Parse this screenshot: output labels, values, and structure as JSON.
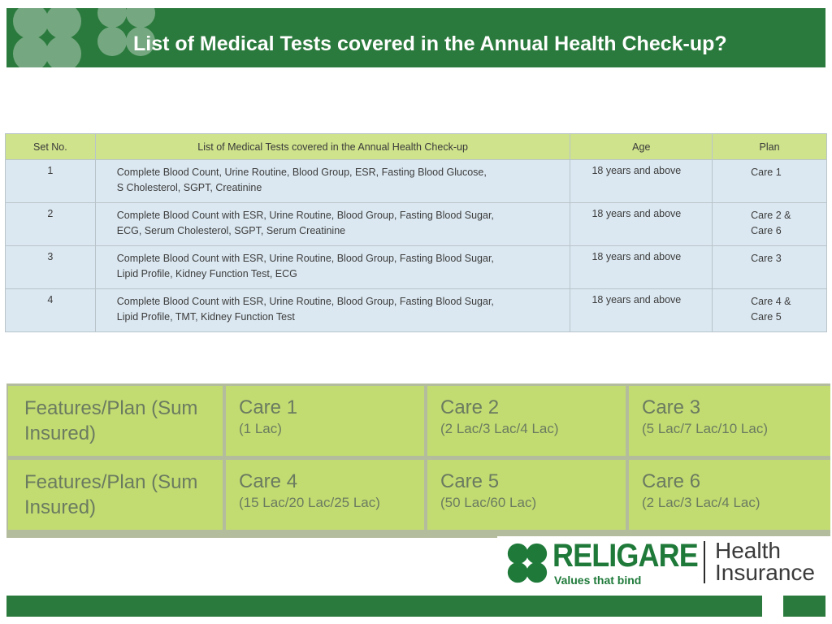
{
  "slide": {
    "title": "List of Medical Tests covered in the Annual Health Check-up?"
  },
  "tests_table": {
    "headers": {
      "set_no": "Set No.",
      "tests": "List of Medical Tests covered in the Annual Health Check-up",
      "age": "Age",
      "plan": "Plan"
    },
    "rows": [
      {
        "set_no": "1",
        "tests_line1": "Complete Blood Count, Urine Routine, Blood Group, ESR, Fasting Blood Glucose,",
        "tests_line2": "S Cholesterol, SGPT, Creatinine",
        "age": "18 years and above",
        "plan_line1": "Care 1",
        "plan_line2": ""
      },
      {
        "set_no": "2",
        "tests_line1": "Complete Blood Count with ESR, Urine Routine, Blood Group, Fasting Blood Sugar,",
        "tests_line2": "ECG, Serum Cholesterol, SGPT, Serum Creatinine",
        "age": "18 years and above",
        "plan_line1": "Care 2 &",
        "plan_line2": "Care 6"
      },
      {
        "set_no": "3",
        "tests_line1": "Complete Blood Count with ESR, Urine Routine, Blood Group, Fasting Blood Sugar,",
        "tests_line2": "Lipid Profile, Kidney Function Test, ECG",
        "age": "18 years and above",
        "plan_line1": "Care 3",
        "plan_line2": ""
      },
      {
        "set_no": "4",
        "tests_line1": "Complete Blood Count with ESR, Urine Routine, Blood Group, Fasting Blood Sugar,",
        "tests_line2": "Lipid Profile, TMT, Kidney Function Test",
        "age": "18 years and above",
        "plan_line1": "Care 4 &",
        "plan_line2": "Care 5"
      }
    ]
  },
  "features_table": {
    "rows": [
      {
        "label_line1": "Features/Plan (Sum",
        "label_line2": "Insured)",
        "plans": [
          {
            "name": "Care 1",
            "sum": "(1 Lac)"
          },
          {
            "name": "Care 2",
            "sum": "(2 Lac/3 Lac/4 Lac)"
          },
          {
            "name": "Care 3",
            "sum": "(5 Lac/7 Lac/10 Lac)"
          }
        ]
      },
      {
        "label_line1": "Features/Plan (Sum",
        "label_line2": "Insured)",
        "plans": [
          {
            "name": "Care 4",
            "sum": "(15 Lac/20 Lac/25 Lac)"
          },
          {
            "name": "Care 5",
            "sum": "(50 Lac/60 Lac)"
          },
          {
            "name": "Care 6",
            "sum": "(2 Lac/3 Lac/4 Lac)"
          }
        ]
      }
    ]
  },
  "logo": {
    "brand": "RELIGARE",
    "tagline": "Values that bind",
    "product_line1": "Health",
    "product_line2": "Insurance",
    "icon": "clover-icon"
  },
  "colors": {
    "brand_green": "#2b7a3d",
    "header_lime": "#cfe38c",
    "row_blue": "#dbe8f1",
    "feature_green": "#c3dc71"
  }
}
